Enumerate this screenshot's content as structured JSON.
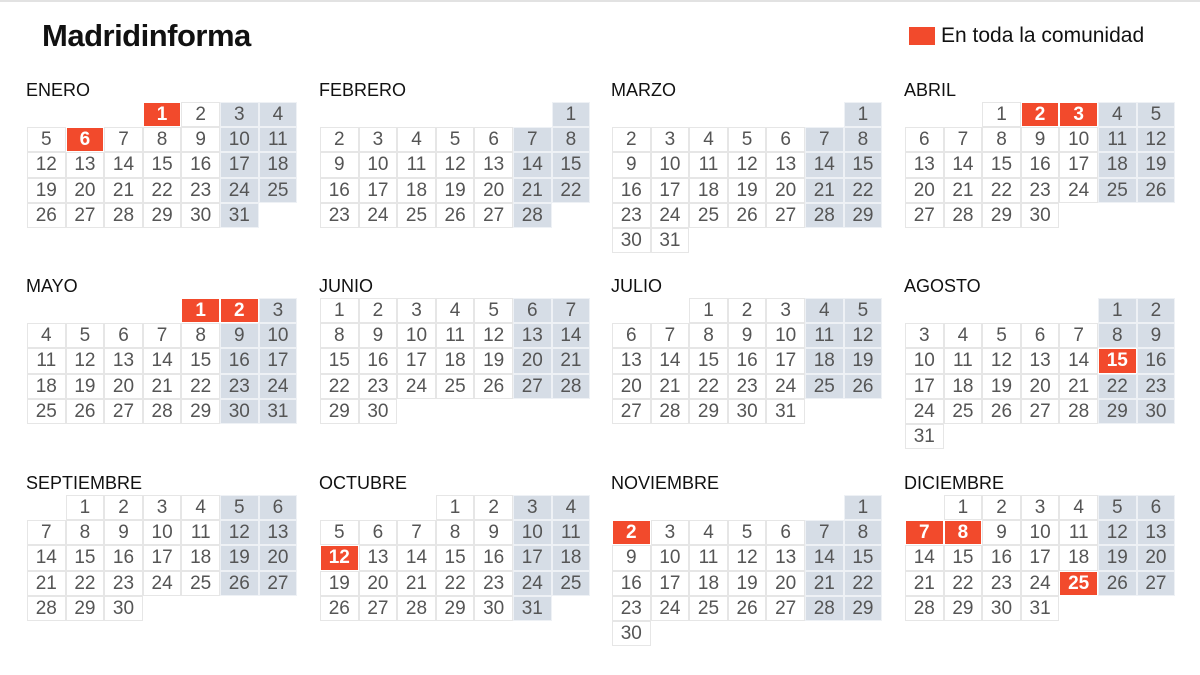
{
  "header": {
    "title": "Madridinforma"
  },
  "legend": {
    "label": "En toda la comunidad",
    "color": "#f24a2c"
  },
  "colors": {
    "holiday": "#f24a2c",
    "weekend": "#d6dde6",
    "text": "#555555"
  },
  "week_start": "monday",
  "months": [
    {
      "name": "ENERO",
      "first_weekday": 3,
      "days": 31,
      "holidays": [
        1,
        6
      ]
    },
    {
      "name": "FEBRERO",
      "first_weekday": 6,
      "days": 28,
      "holidays": []
    },
    {
      "name": "MARZO",
      "first_weekday": 6,
      "days": 31,
      "holidays": []
    },
    {
      "name": "ABRIL",
      "first_weekday": 2,
      "days": 30,
      "holidays": [
        2,
        3
      ]
    },
    {
      "name": "MAYO",
      "first_weekday": 4,
      "days": 31,
      "holidays": [
        1,
        2
      ]
    },
    {
      "name": "JUNIO",
      "first_weekday": 0,
      "days": 30,
      "holidays": []
    },
    {
      "name": "JULIO",
      "first_weekday": 2,
      "days": 31,
      "holidays": []
    },
    {
      "name": "AGOSTO",
      "first_weekday": 5,
      "days": 31,
      "holidays": [
        15
      ]
    },
    {
      "name": "SEPTIEMBRE",
      "first_weekday": 1,
      "days": 30,
      "holidays": []
    },
    {
      "name": "OCTUBRE",
      "first_weekday": 3,
      "days": 31,
      "holidays": [
        12
      ]
    },
    {
      "name": "NOVIEMBRE",
      "first_weekday": 6,
      "days": 30,
      "holidays": [
        2
      ]
    },
    {
      "name": "DICIEMBRE",
      "first_weekday": 1,
      "days": 31,
      "holidays": [
        7,
        8,
        25
      ]
    }
  ]
}
